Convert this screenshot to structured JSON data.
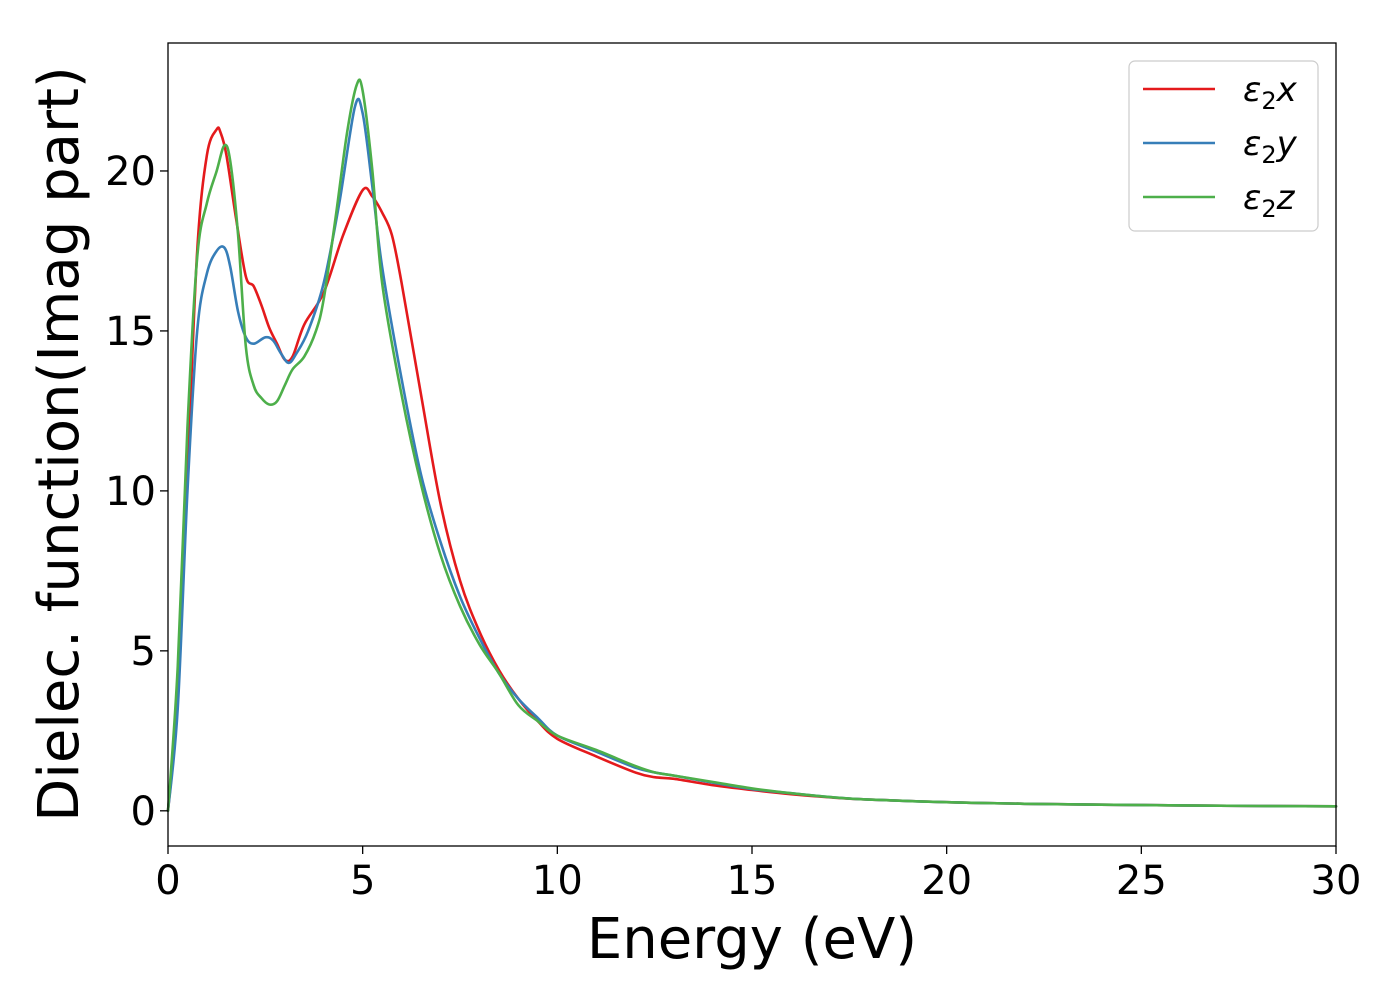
{
  "chart_data": {
    "type": "line",
    "title": "",
    "xlabel": "Energy (eV)",
    "ylabel": "Dielec. function(Imag part)",
    "xlim": [
      0,
      30
    ],
    "ylim": [
      -1.1,
      24
    ],
    "x_ticks": [
      0,
      5,
      10,
      15,
      20,
      25,
      30
    ],
    "y_ticks": [
      0,
      5,
      10,
      15,
      20
    ],
    "grid": false,
    "legend_position": "top-right",
    "series": [
      {
        "name": "ε₂x",
        "legend_base": "ε",
        "legend_sub": "2",
        "legend_tail": "x",
        "color": "#e41a1c",
        "x": [
          0,
          0.25,
          0.5,
          0.75,
          1.0,
          1.25,
          1.35,
          1.5,
          1.75,
          2.0,
          2.2,
          2.4,
          2.6,
          2.8,
          3.0,
          3.2,
          3.5,
          4.0,
          4.5,
          5.0,
          5.25,
          5.5,
          5.75,
          6.0,
          6.5,
          7.0,
          7.5,
          8.0,
          8.5,
          9.0,
          9.5,
          10.0,
          11.0,
          12.0,
          12.5,
          13.0,
          14.0,
          15.0,
          16.0,
          17.0,
          18.0,
          20.0,
          22.0,
          25.0,
          28.0,
          30.0
        ],
        "y": [
          0,
          3.5,
          10.5,
          17.5,
          20.5,
          21.3,
          21.2,
          20.5,
          18.5,
          16.7,
          16.4,
          15.8,
          15.1,
          14.6,
          14.1,
          14.2,
          15.2,
          16.2,
          18.0,
          19.4,
          19.2,
          18.7,
          18.0,
          16.5,
          13.0,
          9.6,
          7.2,
          5.6,
          4.4,
          3.5,
          2.8,
          2.25,
          1.7,
          1.2,
          1.05,
          1.0,
          0.8,
          0.65,
          0.52,
          0.42,
          0.35,
          0.27,
          0.22,
          0.18,
          0.15,
          0.14
        ]
      },
      {
        "name": "ε₂y",
        "legend_base": "ε",
        "legend_sub": "2",
        "legend_tail": "y",
        "color": "#377eb8",
        "x": [
          0,
          0.25,
          0.5,
          0.75,
          1.0,
          1.25,
          1.45,
          1.6,
          1.8,
          2.0,
          2.2,
          2.5,
          2.7,
          2.9,
          3.1,
          3.3,
          3.6,
          4.0,
          4.4,
          4.8,
          5.0,
          5.25,
          5.5,
          6.0,
          6.5,
          7.0,
          7.5,
          8.0,
          8.5,
          9.0,
          9.5,
          10.0,
          11.0,
          12.0,
          12.5,
          13.0,
          14.0,
          15.0,
          16.0,
          17.0,
          18.0,
          20.0,
          22.0,
          25.0,
          28.0,
          30.0
        ],
        "y": [
          0,
          3.2,
          10.0,
          15.0,
          16.8,
          17.5,
          17.6,
          17.0,
          15.6,
          14.8,
          14.6,
          14.8,
          14.7,
          14.3,
          14.0,
          14.3,
          15.0,
          16.5,
          19.0,
          22.0,
          21.8,
          19.5,
          17.0,
          13.5,
          10.5,
          8.4,
          6.7,
          5.4,
          4.3,
          3.5,
          2.9,
          2.35,
          1.85,
          1.35,
          1.2,
          1.1,
          0.88,
          0.68,
          0.55,
          0.43,
          0.35,
          0.27,
          0.22,
          0.18,
          0.15,
          0.14
        ]
      },
      {
        "name": "ε₂z",
        "legend_base": "ε",
        "legend_sub": "2",
        "legend_tail": "z",
        "color": "#4daf4a",
        "x": [
          0,
          0.25,
          0.5,
          0.75,
          1.0,
          1.25,
          1.45,
          1.6,
          1.8,
          2.0,
          2.2,
          2.4,
          2.6,
          2.8,
          3.0,
          3.2,
          3.5,
          3.8,
          4.0,
          4.3,
          4.6,
          4.85,
          5.0,
          5.25,
          5.5,
          6.0,
          6.5,
          7.0,
          7.5,
          8.0,
          8.5,
          9.0,
          9.5,
          10.0,
          11.0,
          12.0,
          12.5,
          13.0,
          14.0,
          15.0,
          16.0,
          17.0,
          18.0,
          20.0,
          22.0,
          25.0,
          28.0,
          30.0
        ],
        "y": [
          0,
          4.5,
          12.0,
          17.3,
          19.0,
          20.0,
          20.8,
          20.3,
          18.0,
          14.5,
          13.3,
          12.9,
          12.7,
          12.8,
          13.3,
          13.8,
          14.2,
          15.0,
          16.0,
          18.5,
          21.2,
          22.7,
          22.5,
          20.0,
          16.5,
          13.0,
          10.2,
          8.0,
          6.4,
          5.2,
          4.3,
          3.3,
          2.8,
          2.35,
          1.9,
          1.4,
          1.2,
          1.1,
          0.9,
          0.7,
          0.55,
          0.43,
          0.35,
          0.27,
          0.22,
          0.18,
          0.15,
          0.14
        ]
      }
    ]
  }
}
